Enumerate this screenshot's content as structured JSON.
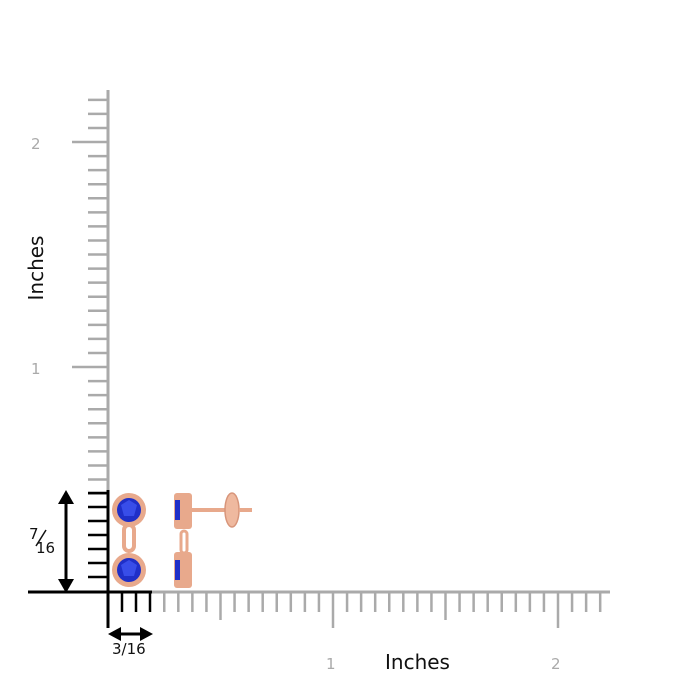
{
  "ruler": {
    "x_axis_title": "Inches",
    "y_axis_title": "Inches",
    "x_tick_labels": [
      "1",
      "2"
    ],
    "y_tick_labels": [
      "1",
      "2"
    ],
    "tick_color": "#aaaaaa",
    "axis_color": "#000000"
  },
  "dimensions": {
    "height_num": "7",
    "height_den": "16",
    "width": "3/16"
  },
  "product": {
    "metal_color": "#e8a98c",
    "stone_color": "#1f2fc8"
  }
}
